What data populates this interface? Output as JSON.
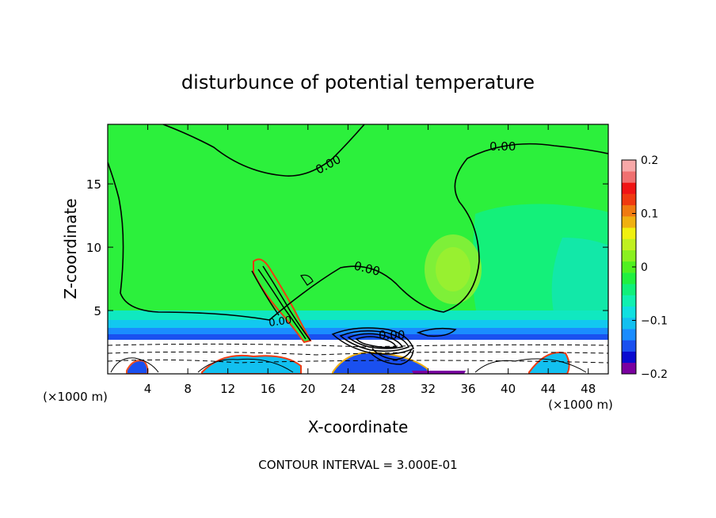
{
  "chart_data": {
    "type": "heatmap",
    "title": "disturbunce of potential temperature",
    "xlabel": "X-coordinate",
    "ylabel": "Z-coordinate",
    "x_unit": "(×1000 m)",
    "x_unit_right": "(×1000 m)",
    "xlim": [
      0,
      50
    ],
    "ylim": [
      0,
      19.7
    ],
    "x_ticks": [
      4,
      8,
      12,
      16,
      20,
      24,
      28,
      32,
      36,
      40,
      44,
      48
    ],
    "y_ticks": [
      5,
      10,
      15
    ],
    "contour_labels": [
      "0.00",
      "0.00",
      "0.00",
      "0.00",
      "0.00"
    ],
    "footnote": "CONTOUR INTERVAL = 3.000E-01",
    "colorbar": {
      "range": [
        -0.2,
        0.2
      ],
      "tick_values": [
        0.2,
        0.1,
        0,
        -0.1,
        -0.2
      ],
      "tick_labels": [
        "0.2",
        "0.1",
        "0",
        "−0.1",
        "−0.2"
      ],
      "colors": [
        "#7a00a0",
        "#0a0ad0",
        "#1a50f0",
        "#1a8cff",
        "#12c0f0",
        "#10e0e0",
        "#10f0b0",
        "#10f07a",
        "#20f040",
        "#50f020",
        "#8af020",
        "#c0f020",
        "#f0f010",
        "#f0b010",
        "#f07a10",
        "#f03a10",
        "#f01414",
        "#f07070",
        "#f8a8a8"
      ]
    }
  }
}
